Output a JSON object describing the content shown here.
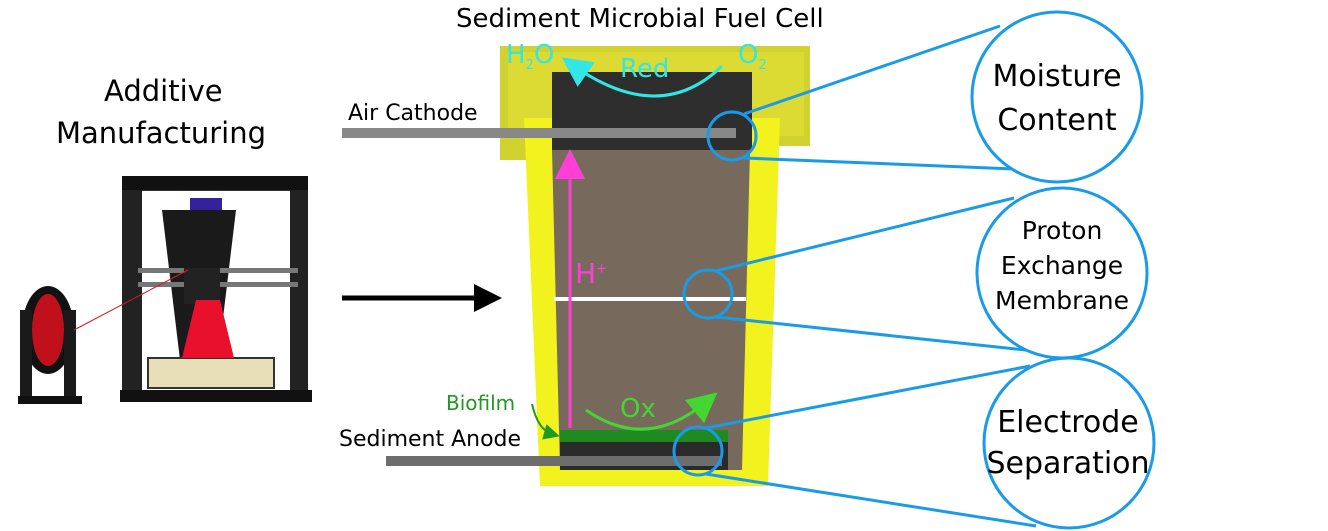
{
  "title": "Sediment Microbial Fuel Cell",
  "left_label": {
    "line1": "Additive",
    "line2": "Manufacturing"
  },
  "labels": {
    "air_cathode": "Air Cathode",
    "sediment_anode": "Sediment Anode",
    "biofilm": "Biofilm",
    "red": "Red",
    "ox": "Ox",
    "h2o": {
      "main": "H",
      "sub": "2",
      "end": "O"
    },
    "o2": {
      "main": "O",
      "sub": "2"
    },
    "hplus": {
      "main": "H",
      "sup": "+"
    }
  },
  "callouts": [
    {
      "line1": "Moisture",
      "line2": "Content"
    },
    {
      "line1": "Proton",
      "line2": "Exchange",
      "line3": "Membrane"
    },
    {
      "line1": "Electrode",
      "line2": "Separation"
    }
  ],
  "colors": {
    "frame_yellow": "#f2f21e",
    "frame_olive": "#c7c72a",
    "sediment": "#776a5c",
    "cathode_dark": "#2e2e2e",
    "biofilm_green": "#1f8a1f",
    "callout_blue": "#1a9be8",
    "proton_magenta": "#ff3fd6",
    "red_cyan": "#33e6e6",
    "ox_green": "#44d633"
  },
  "icons": [
    "3d-printer-icon",
    "right-arrow-icon"
  ]
}
